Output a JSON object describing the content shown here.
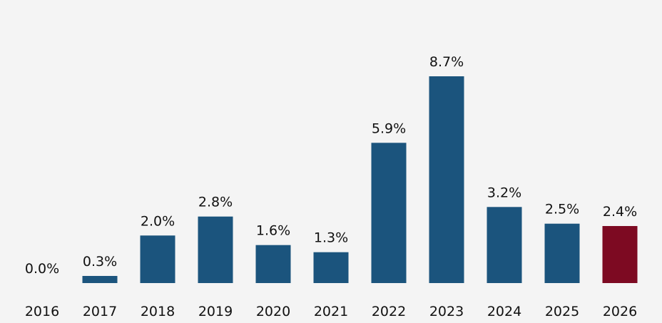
{
  "chart_data": {
    "type": "bar",
    "title": "",
    "xlabel": "",
    "ylabel": "",
    "categories": [
      "2016",
      "2017",
      "2018",
      "2019",
      "2020",
      "2021",
      "2022",
      "2023",
      "2024",
      "2025",
      "2026"
    ],
    "values": [
      0.0,
      0.3,
      2.0,
      2.8,
      1.6,
      1.3,
      5.9,
      8.7,
      3.2,
      2.5,
      2.4
    ],
    "value_labels": [
      "0.0%",
      "0.3%",
      "2.0%",
      "2.8%",
      "1.6%",
      "1.3%",
      "5.9%",
      "8.7%",
      "3.2%",
      "2.5%",
      "2.4%"
    ],
    "colors": [
      "#1b547d",
      "#1b547d",
      "#1b547d",
      "#1b547d",
      "#1b547d",
      "#1b547d",
      "#1b547d",
      "#1b547d",
      "#1b547d",
      "#1b547d",
      "#7d0a22"
    ],
    "ylim": [
      0,
      10
    ],
    "grid": false,
    "legend": "none"
  }
}
